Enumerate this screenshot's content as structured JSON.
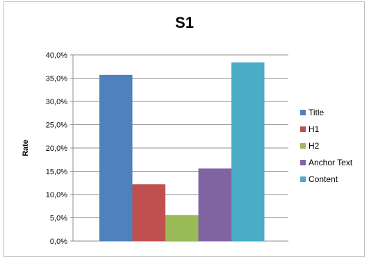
{
  "chart_data": {
    "type": "bar",
    "title": "S1",
    "ylabel": "Rate",
    "xlabel": "",
    "ylim": [
      0,
      40
    ],
    "y_ticks": [
      "0,0%",
      "5,0%",
      "10,0%",
      "15,0%",
      "20,0%",
      "25,0%",
      "30,0%",
      "35,0%",
      "40,0%"
    ],
    "grid": true,
    "legend_position": "right",
    "series": [
      {
        "name": "Title",
        "value": 35.7,
        "color": "#4f81bd"
      },
      {
        "name": "H1",
        "value": 12.2,
        "color": "#c0504d"
      },
      {
        "name": "H2",
        "value": 5.6,
        "color": "#9bbb59"
      },
      {
        "name": "Anchor Text",
        "value": 15.6,
        "color": "#8064a2"
      },
      {
        "name": "Content",
        "value": 38.4,
        "color": "#4bacc6"
      }
    ]
  }
}
